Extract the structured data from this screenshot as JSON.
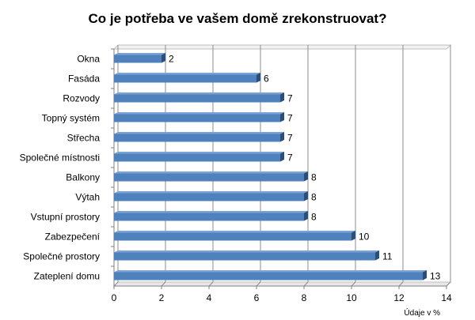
{
  "chart_data": {
    "type": "bar",
    "orientation": "horizontal",
    "title": "Co je potřeba ve vašem domě zrekonstruovat?",
    "categories": [
      "Okna",
      "Fasáda",
      "Rozvody",
      "Topný systém",
      "Střecha",
      "Společné místnosti",
      "Balkony",
      "Výtah",
      "Vstupní prostory",
      "Zabezpečení",
      "Společné prostory",
      "Zateplení domu"
    ],
    "values": [
      2,
      6,
      7,
      7,
      7,
      7,
      8,
      8,
      8,
      10,
      11,
      13
    ],
    "xlim": [
      0,
      14
    ],
    "xticks": [
      0,
      2,
      4,
      6,
      8,
      10,
      12,
      14
    ],
    "unit_label": "Údaje v %",
    "grid": true,
    "bar_color": "#4f81bd",
    "bar_color_dark": "#2c4d75",
    "grid_color": "#8c8c8c"
  }
}
